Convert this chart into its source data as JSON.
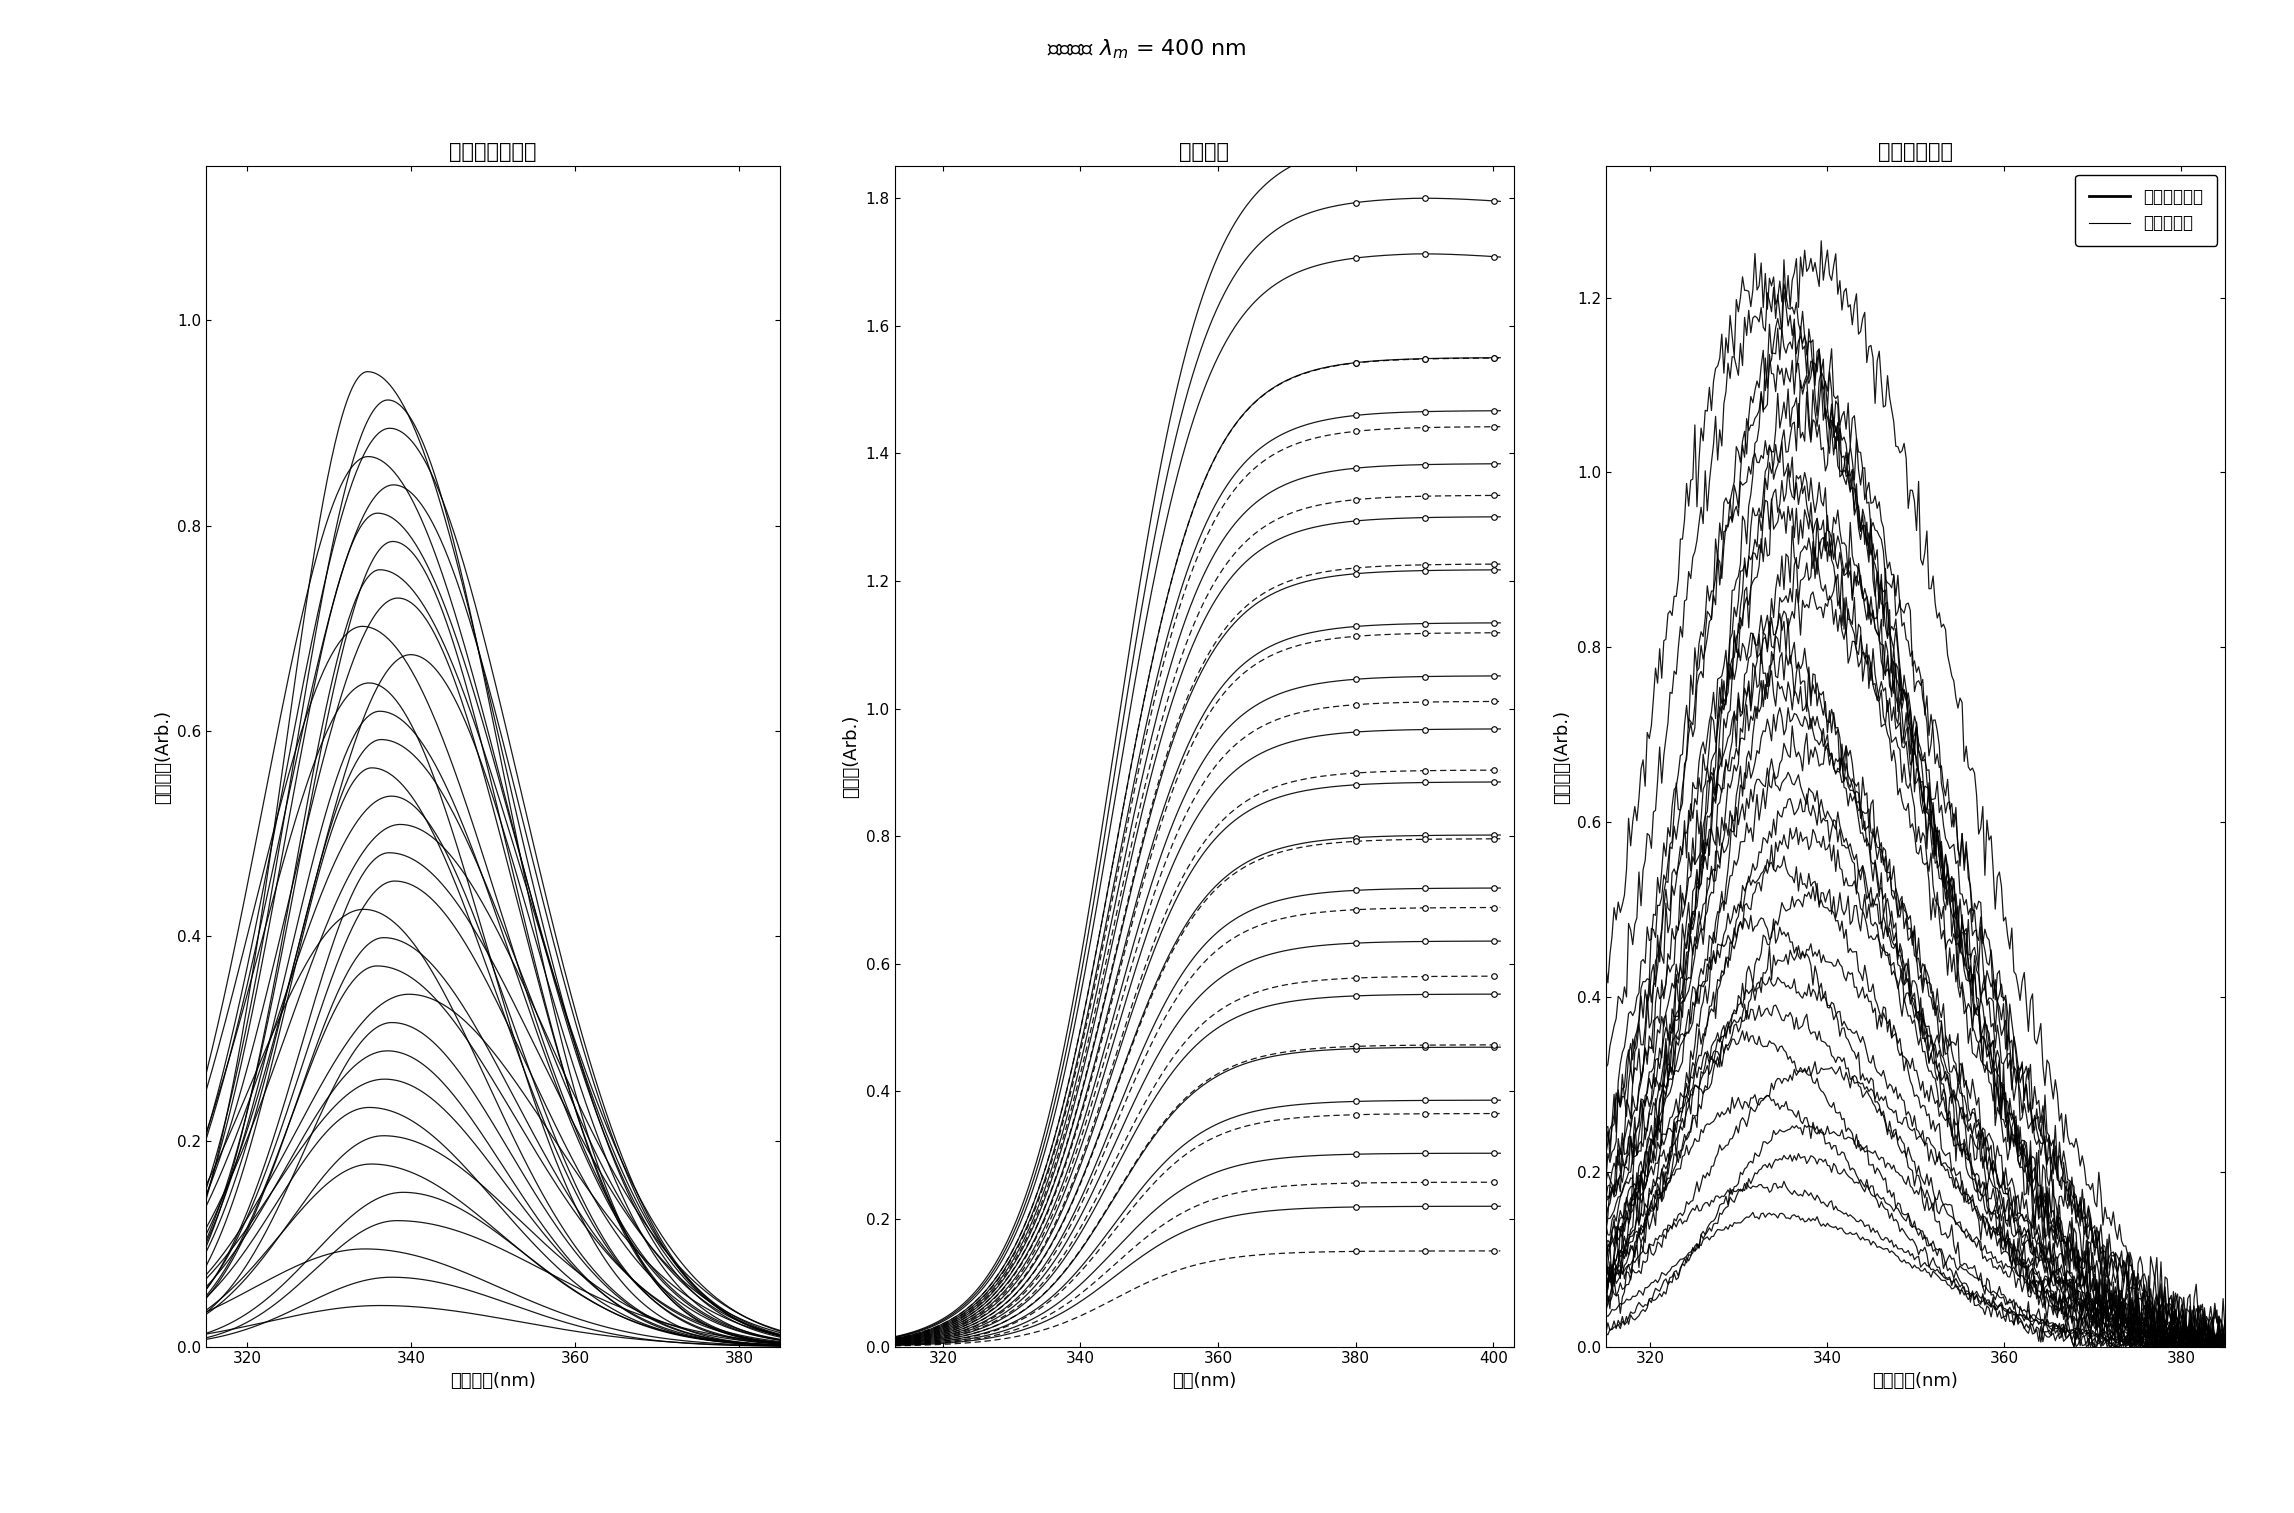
{
  "title": "激发扫描 $\\lambda_m$ = 400 nm",
  "subplot1_title": "未经校正的荧光",
  "subplot2_title": "反射光谱",
  "subplot3_title": "经校正的荧光",
  "subplot1_xlabel": "激发波长(nm)",
  "subplot2_xlabel": "波长(nm)",
  "subplot3_xlabel": "激发波长(nm)",
  "subplot1_ylabel": "荧光强度(Arb.)",
  "subplot2_ylabel": "反射率(Arb.)",
  "subplot3_ylabel": "发射强度(Arb.)",
  "legend_nondiabetic": "非糖尿病患者",
  "legend_diabetic": "糖尿病患者",
  "subplot1_xlim": [
    315,
    385
  ],
  "subplot1_ylim": [
    0,
    1.15
  ],
  "subplot1_xticks": [
    320,
    340,
    360,
    380
  ],
  "subplot1_yticks": [
    0,
    0.2,
    0.4,
    0.6,
    0.8,
    1.0
  ],
  "subplot2_xlim": [
    313,
    403
  ],
  "subplot2_ylim": [
    0,
    1.85
  ],
  "subplot2_xticks": [
    320,
    340,
    360,
    380,
    400
  ],
  "subplot2_yticks": [
    0,
    0.2,
    0.4,
    0.6,
    0.8,
    1.0,
    1.2,
    1.4,
    1.6,
    1.8
  ],
  "subplot3_xlim": [
    315,
    385
  ],
  "subplot3_ylim": [
    0,
    1.35
  ],
  "subplot3_xticks": [
    320,
    340,
    360,
    380
  ],
  "subplot3_yticks": [
    0,
    0.2,
    0.4,
    0.6,
    0.8,
    1.0,
    1.2
  ],
  "n_nondiabetic": 20,
  "n_diabetic": 14,
  "background_color": "#ffffff"
}
